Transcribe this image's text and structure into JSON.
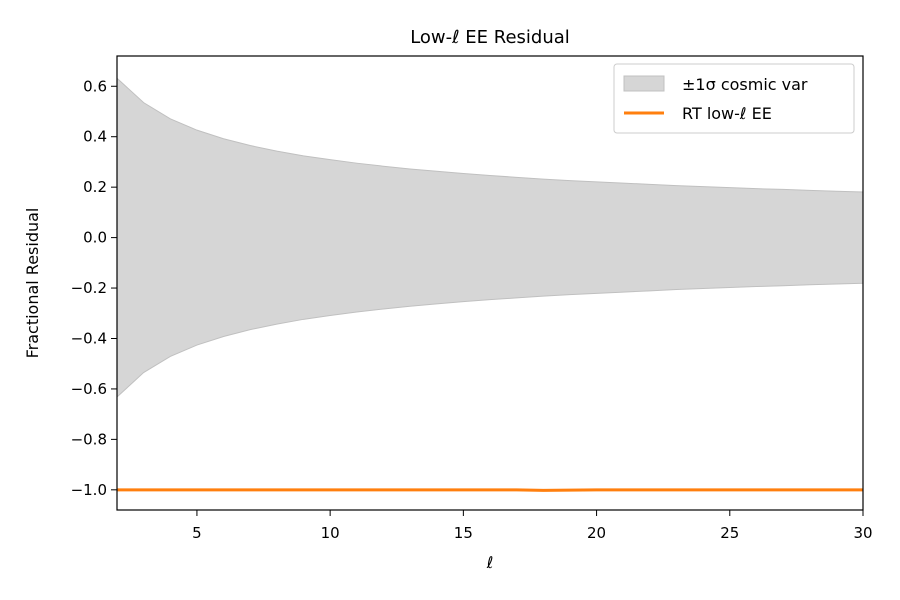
{
  "chart_data": {
    "type": "line",
    "title": "Low-ℓ EE Residual",
    "xlabel": "ℓ",
    "ylabel": "Fractional Residual",
    "xlim": [
      2,
      30
    ],
    "ylim": [
      -1.08,
      0.72
    ],
    "xticks": [
      5,
      10,
      15,
      20,
      25,
      30
    ],
    "yticks": [
      0.6,
      0.4,
      0.2,
      0.0,
      -0.2,
      -0.4,
      -0.6,
      -0.8,
      -1.0
    ],
    "xtick_labels": [
      "5",
      "10",
      "15",
      "20",
      "25",
      "30"
    ],
    "ytick_labels": [
      "0.6",
      "0.4",
      "0.2",
      "0.0",
      "−0.2",
      "−0.4",
      "−0.6",
      "−0.8",
      "−1.0"
    ],
    "grid": false,
    "legend_position": "top-right",
    "band": {
      "name": "±1σ cosmic var",
      "color": "#d6d6d6",
      "edge_color": "#c0c0c0",
      "x": [
        2,
        3,
        4,
        5,
        6,
        7,
        8,
        9,
        10,
        11,
        12,
        13,
        14,
        15,
        16,
        17,
        18,
        19,
        20,
        21,
        22,
        23,
        24,
        25,
        26,
        27,
        28,
        29,
        30
      ],
      "upper": [
        0.632,
        0.535,
        0.471,
        0.426,
        0.392,
        0.365,
        0.343,
        0.324,
        0.309,
        0.295,
        0.283,
        0.272,
        0.263,
        0.254,
        0.246,
        0.239,
        0.232,
        0.226,
        0.221,
        0.216,
        0.211,
        0.206,
        0.202,
        0.198,
        0.194,
        0.191,
        0.187,
        0.184,
        0.181
      ],
      "lower": [
        -0.632,
        -0.535,
        -0.471,
        -0.426,
        -0.392,
        -0.365,
        -0.343,
        -0.324,
        -0.309,
        -0.295,
        -0.283,
        -0.272,
        -0.263,
        -0.254,
        -0.246,
        -0.239,
        -0.232,
        -0.226,
        -0.221,
        -0.216,
        -0.211,
        -0.206,
        -0.202,
        -0.198,
        -0.194,
        -0.191,
        -0.187,
        -0.184,
        -0.181
      ]
    },
    "series": [
      {
        "name": "RT low-ℓ EE",
        "color": "#ff7f0e",
        "x": [
          2,
          3,
          4,
          5,
          6,
          7,
          8,
          9,
          10,
          11,
          12,
          13,
          14,
          15,
          16,
          17,
          18,
          19,
          20,
          21,
          22,
          23,
          24,
          25,
          26,
          27,
          28,
          29,
          30
        ],
        "values": [
          -1.0,
          -1.0,
          -1.0,
          -1.0,
          -1.0,
          -1.0,
          -1.0,
          -1.0,
          -1.0,
          -1.0,
          -1.0,
          -1.0,
          -1.0,
          -1.0,
          -1.0,
          -1.0,
          -1.002,
          -1.001,
          -1.0,
          -1.0,
          -1.0,
          -1.0,
          -1.0,
          -1.0,
          -1.0,
          -1.0,
          -1.0,
          -1.0,
          -1.0
        ]
      }
    ]
  }
}
